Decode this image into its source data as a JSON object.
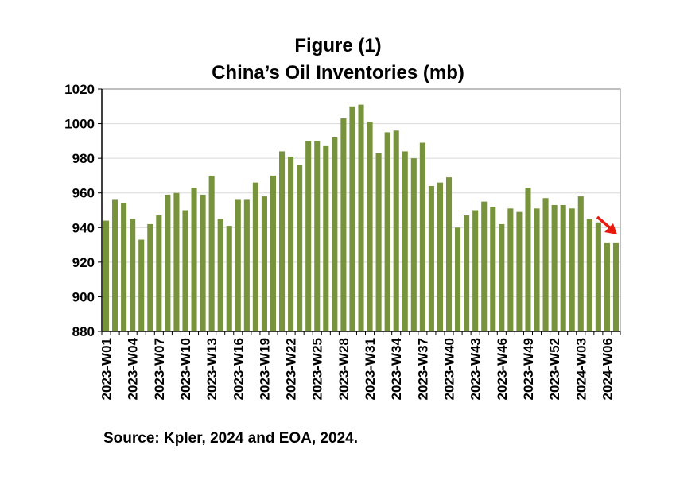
{
  "title_line1": "Figure (1)",
  "title_line2": "China’s Oil Inventories (mb)",
  "source": "Source: Kpler, 2024 and EOA, 2024.",
  "colors": {
    "bar": "#77933C",
    "arrow": "#E8190E",
    "grid": "#D9D9D9",
    "axis": "#000000"
  },
  "chart_data": {
    "type": "bar",
    "title": "China’s Oil Inventories (mb)",
    "xlabel": "",
    "ylabel": "",
    "ylim": [
      880,
      1020
    ],
    "yticks": [
      880,
      900,
      920,
      940,
      960,
      980,
      1000,
      1020
    ],
    "grid": true,
    "categories": [
      "2023-W01",
      "2023-W02",
      "2023-W03",
      "2023-W04",
      "2023-W05",
      "2023-W06",
      "2023-W07",
      "2023-W08",
      "2023-W09",
      "2023-W10",
      "2023-W11",
      "2023-W12",
      "2023-W13",
      "2023-W14",
      "2023-W15",
      "2023-W16",
      "2023-W17",
      "2023-W18",
      "2023-W19",
      "2023-W20",
      "2023-W21",
      "2023-W22",
      "2023-W23",
      "2023-W24",
      "2023-W25",
      "2023-W26",
      "2023-W27",
      "2023-W28",
      "2023-W29",
      "2023-W30",
      "2023-W31",
      "2023-W32",
      "2023-W33",
      "2023-W34",
      "2023-W35",
      "2023-W36",
      "2023-W37",
      "2023-W38",
      "2023-W39",
      "2023-W40",
      "2023-W41",
      "2023-W42",
      "2023-W43",
      "2023-W44",
      "2023-W45",
      "2023-W46",
      "2023-W47",
      "2023-W48",
      "2023-W49",
      "2023-W50",
      "2023-W51",
      "2023-W52",
      "2024-W01",
      "2024-W02",
      "2024-W03",
      "2024-W04",
      "2024-W05",
      "2024-W06",
      "2024-W07"
    ],
    "shown_labels": [
      "2023-W01",
      "2023-W04",
      "2023-W07",
      "2023-W10",
      "2023-W13",
      "2023-W16",
      "2023-W19",
      "2023-W22",
      "2023-W25",
      "2023-W28",
      "2023-W31",
      "2023-W34",
      "2023-W37",
      "2023-W40",
      "2023-W43",
      "2023-W46",
      "2023-W49",
      "2023-W52",
      "2024-W03",
      "2024-W06"
    ],
    "values": [
      944,
      956,
      954,
      945,
      933,
      942,
      947,
      959,
      960,
      950,
      963,
      959,
      970,
      945,
      941,
      956,
      956,
      966,
      958,
      970,
      984,
      981,
      976,
      990,
      990,
      987,
      992,
      1003,
      1010,
      1011,
      1001,
      983,
      995,
      996,
      984,
      980,
      989,
      964,
      966,
      969,
      940,
      947,
      950,
      955,
      952,
      942,
      951,
      949,
      963,
      951,
      957,
      953,
      953,
      951,
      958,
      945,
      943,
      931,
      931
    ]
  }
}
